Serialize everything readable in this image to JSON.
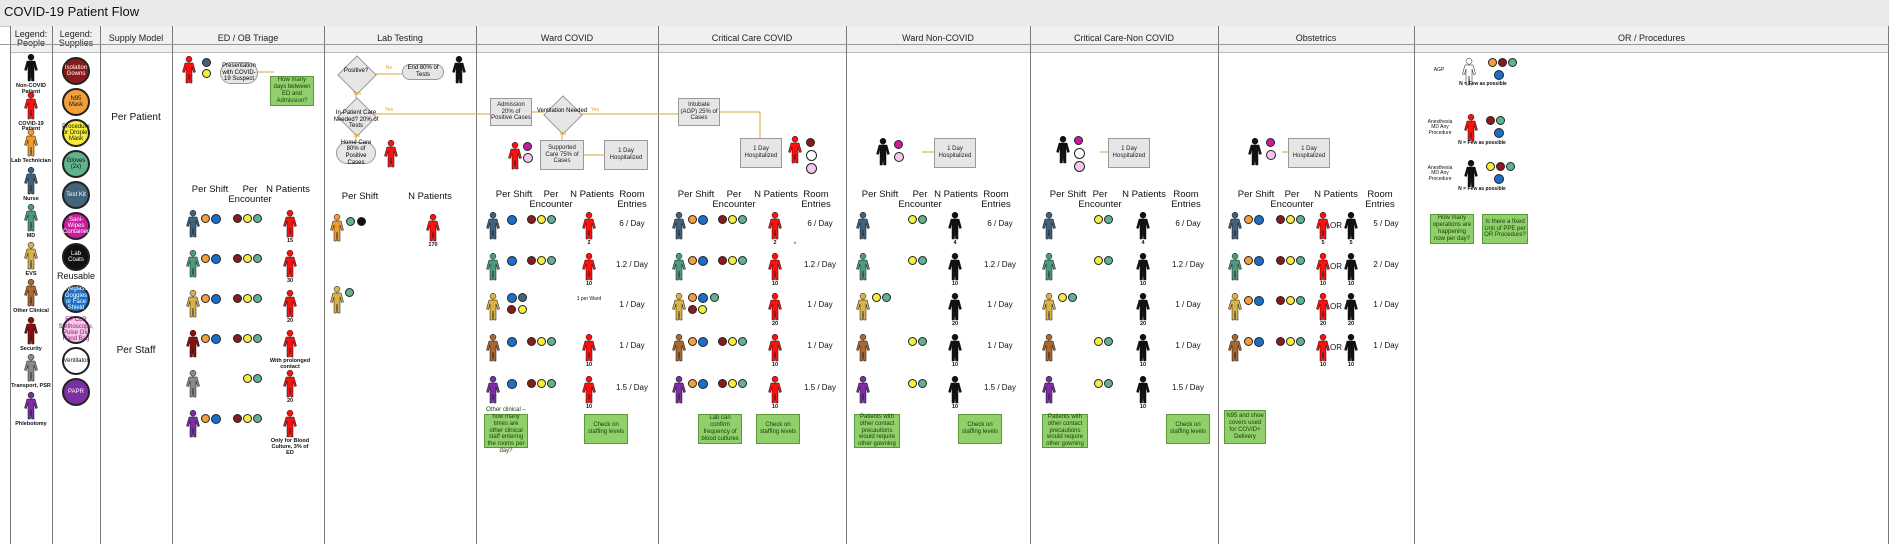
{
  "title": "COVID-19 Patient Flow",
  "columns": [
    {
      "key": "legend_people",
      "label": "Legend: People"
    },
    {
      "key": "legend_supplies",
      "label": "Legend: Supplies"
    },
    {
      "key": "supply_model",
      "label": "Supply Model"
    },
    {
      "key": "ed",
      "label": "ED / OB Triage"
    },
    {
      "key": "lab",
      "label": "Lab Testing"
    },
    {
      "key": "ward",
      "label": "Ward COVID"
    },
    {
      "key": "cc",
      "label": "Critical Care COVID"
    },
    {
      "key": "wardnc",
      "label": "Ward Non-COVID"
    },
    {
      "key": "ccnc",
      "label": "Critical Care-Non COVID"
    },
    {
      "key": "ob",
      "label": "Obstetrics"
    },
    {
      "key": "or",
      "label": "OR / Procedures"
    }
  ],
  "legend_people": [
    {
      "label": "Non-COVID Patient",
      "color": "#111111"
    },
    {
      "label": "COVID-19 Patient",
      "color": "#ff1010"
    },
    {
      "label": "Lab Technician",
      "color": "#f39a2e"
    },
    {
      "label": "Nurse",
      "color": "#42617a"
    },
    {
      "label": "MD",
      "color": "#4e9a7e"
    },
    {
      "label": "EVS",
      "color": "#d9b24a"
    },
    {
      "label": "Other Clinical",
      "color": "#a9692f"
    },
    {
      "label": "Security",
      "color": "#8b0f0f"
    },
    {
      "label": "Transport, PSR",
      "color": "#8a8a8a"
    },
    {
      "label": "Phlebotomy",
      "color": "#7b2fa3"
    }
  ],
  "legend_supplies": [
    {
      "label": "Isolation Gowns",
      "color": "#8b1a1a",
      "text": "#ffffff"
    },
    {
      "label": "N95 Mask",
      "color": "#f4a03a",
      "text": "#111111"
    },
    {
      "label": "Procedure or Droplet Mask",
      "color": "#f6ee3a",
      "text": "#111111"
    },
    {
      "label": "Gloves (2x)",
      "color": "#5fb38f",
      "text": "#111111"
    },
    {
      "label": "Test Kit",
      "color": "#43647d",
      "text": "#ffffff"
    },
    {
      "label": "Sani-Wipes (Container)",
      "color": "#cc1aa0",
      "text": "#ffffff"
    },
    {
      "label": "Lab Coats",
      "color": "#111111",
      "text": "#ffffff"
    }
  ],
  "reusable_label": "Reusable",
  "legend_reusable": [
    {
      "label": "Eyeglass/ Goggles or Face Shield",
      "color": "#1b6fc8",
      "text": "#ffffff"
    },
    {
      "label": "EP CLR Stethoscope, Pulse Ox, Hand Bag",
      "color": "#f5c6ea",
      "text": "#8a1a70"
    },
    {
      "label": "Ventilator",
      "color": "#ffffff",
      "text": "#111111"
    },
    {
      "label": "PAPR",
      "color": "#7b2fa3",
      "text": "#ffffff"
    }
  ],
  "supply_model": {
    "per_patient": "Per Patient",
    "per_staff": "Per Staff"
  },
  "headers": {
    "per_shift": "Per Shift",
    "per_encounter": "Per Encounter",
    "n_patients": "N Patients",
    "room_entries": "Room Entries"
  },
  "flow": {
    "presentation": "Presentation with COVID-19 Suspect",
    "how_many_days": "How many days between ED and Admission?",
    "positive": "Positive?",
    "no": "No",
    "yes": "Yes",
    "end": "End 80% of Tests",
    "inpatient": "In-Patient Care Needed? 20% of Tests",
    "home_care": "Home Care 80% of Positive Cases",
    "admission": "Admission 20% of Positive Cases",
    "ventilation": "Ventilation Needed",
    "supported": "Supported Care 75% of Cases",
    "one_day": "1 Day Hospitalized",
    "intubate": "Intubate (AGP) 25% of Cases"
  },
  "ed_patient_counts": [
    "15",
    "30",
    "20",
    "With prolonged contact",
    "20",
    "Only for Blood Culture, 3% of ED"
  ],
  "lab_patient_count": "170",
  "ward": {
    "counts": [
      "2",
      "10",
      "",
      "10",
      "10"
    ],
    "entries": [
      "6 / Day",
      "1.2 / Day",
      "1 / Day",
      "1 / Day",
      "1.5 / Day"
    ],
    "per_ward": "1 per Ward"
  },
  "cc": {
    "counts": [
      "2",
      "10",
      "20",
      "10",
      "10"
    ],
    "entries": [
      "6 / Day",
      "1.2 / Day",
      "1 / Day",
      "1 / Day",
      "1.5 / Day"
    ],
    "star": "*"
  },
  "wardnc": {
    "counts": [
      "4",
      "10",
      "20",
      "10",
      "10"
    ],
    "entries": [
      "6 / Day",
      "1.2 / Day",
      "1 / Day",
      "1 / Day",
      "1.5 / Day"
    ]
  },
  "ccnc": {
    "counts": [
      "4",
      "10",
      "20",
      "10",
      "10"
    ],
    "entries": [
      "6 / Day",
      "1.2 / Day",
      "1 / Day",
      "1 / Day",
      "1.5 / Day"
    ]
  },
  "ob": {
    "counts": [
      "5",
      "10",
      "20",
      "10"
    ],
    "entries": [
      "5 / Day",
      "2 / Day",
      "1 / Day",
      "1 / Day"
    ],
    "or_word": "OR"
  },
  "or": {
    "agp": "AGP",
    "few": "N = Few as possible",
    "anesthesia_md": "Anesthesia MD Any Procedure",
    "anesthesia": "Anesthesia MD Any Procedure",
    "ops_note": "How many operations are happening now per day?",
    "fixed_note": "Is there a fixed Unit of PPE per OR Procedure?"
  },
  "notes": {
    "ward_other": "Other clinical – how many times are other clinical staff entering the rooms per day?",
    "staffing": "Check on staffing levels",
    "lab_confirm": "Lab can confirm frequency of blood cultures",
    "precautions": "Patients with other contact precautions would require other gowning",
    "ob_n95": "N95 and shoe covers used for COVID+ Delivery"
  },
  "colors": {
    "grid": "#7a7a7a",
    "arrow": "#d4a53a",
    "note": "#8fd06b"
  }
}
